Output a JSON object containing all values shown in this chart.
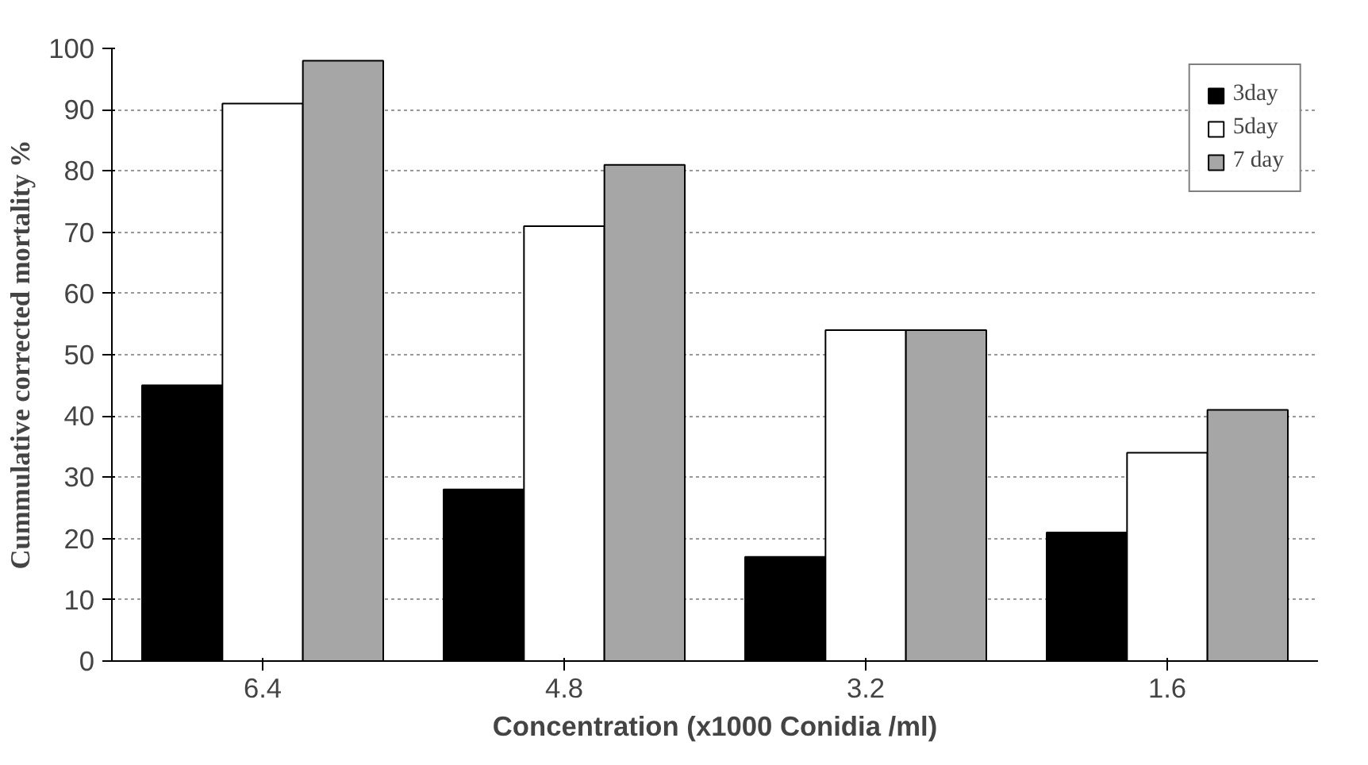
{
  "chart_data": {
    "type": "bar",
    "xlabel": "Concentration (x1000 Conidia /ml)",
    "ylabel": "Cummulative corrected mortality %",
    "categories": [
      "6.4",
      "4.8",
      "3.2",
      "1.6"
    ],
    "series": [
      {
        "name": "3day",
        "color": "#000000",
        "values": [
          45,
          28,
          17,
          21
        ]
      },
      {
        "name": "5day",
        "color": "#ffffff",
        "values": [
          91,
          71,
          54,
          34
        ]
      },
      {
        "name": "7 day",
        "color": "#a6a6a6",
        "values": [
          98,
          81,
          54,
          41
        ]
      }
    ],
    "ylim": [
      0,
      100
    ],
    "yticks": [
      0,
      10,
      20,
      30,
      40,
      50,
      60,
      70,
      80,
      90,
      100
    ],
    "grid": "y",
    "legend": "top right"
  }
}
